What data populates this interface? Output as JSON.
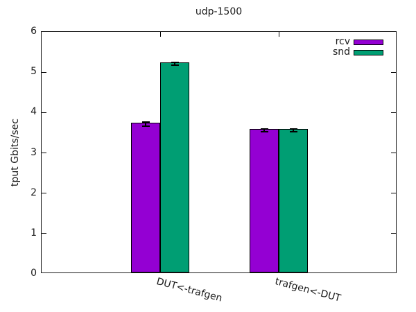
{
  "window": {
    "background_color": "#ffffff",
    "text_color": "#1a1a1a"
  },
  "chart_data": {
    "type": "bar",
    "title": "udp-1500",
    "xlabel": "",
    "ylabel": "tput Gbits/sec",
    "categories": [
      "DUT<-trafgen",
      "trafgen<-DUT"
    ],
    "series": [
      {
        "name": "rcv",
        "color": "#9400d3",
        "values": [
          3.72,
          3.56
        ],
        "errors": [
          0.05,
          0.04
        ]
      },
      {
        "name": "snd",
        "color": "#009e73",
        "values": [
          5.21,
          3.56
        ],
        "errors": [
          0.04,
          0.04
        ]
      }
    ],
    "ylim": [
      0,
      6
    ],
    "yticks": [
      0,
      1,
      2,
      3,
      4,
      5,
      6
    ],
    "grid": false,
    "legend_position": "top-right-inside",
    "legend_entries": [
      "rcv",
      "snd"
    ],
    "bar_border_color": "#000000",
    "error_bar_color": "#000000",
    "axis_border_color": "#1a1a1a",
    "xtick_rotation_deg": 15
  }
}
